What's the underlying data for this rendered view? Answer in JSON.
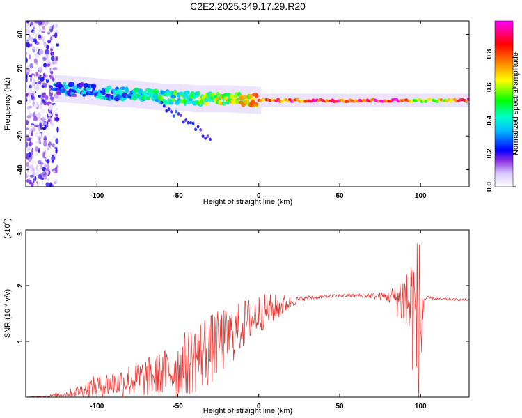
{
  "page": {
    "title": "C2E2.2025.349.17.29.R20"
  },
  "chart_data": [
    {
      "id": "spectrogram",
      "type": "heatmap",
      "title": "C2E2.2025.349.17.29.R20",
      "xlabel": "Height of straight line (km)",
      "ylabel": "Frequency (Hz)",
      "xlim": [
        -144,
        130
      ],
      "ylim": [
        -50,
        48
      ],
      "xticks": [
        -100,
        -50,
        0,
        50,
        100
      ],
      "yticks": [
        -40,
        -20,
        0,
        20,
        40
      ],
      "colorbar": {
        "label": "Normalized spectral amplitude",
        "range": [
          0,
          1
        ],
        "ticks": [
          "0.0",
          "0.2",
          "0.4",
          "0.6",
          "0.8"
        ],
        "colormap": "rainbow",
        "stops": [
          "#ffffff",
          "#d8c8ff",
          "#8a2be2",
          "#0000ff",
          "#00bfff",
          "#00ffcc",
          "#00ff00",
          "#ffff00",
          "#ff8c00",
          "#ff0000",
          "#ff00ff"
        ]
      },
      "ridge": {
        "x": [
          -125,
          -110,
          -100,
          -90,
          -80,
          -70,
          -60,
          -50,
          -40,
          -30,
          -20,
          -10,
          0,
          20,
          50,
          90,
          100,
          130
        ],
        "freq": [
          8,
          7,
          6,
          5,
          5,
          4,
          3,
          3,
          2,
          2,
          2,
          1.5,
          1,
          1,
          1,
          1,
          1,
          1
        ],
        "amp": [
          0.35,
          0.35,
          0.38,
          0.4,
          0.42,
          0.45,
          0.5,
          0.52,
          0.55,
          0.6,
          0.65,
          0.7,
          0.8,
          0.85,
          0.9,
          0.92,
          0.6,
          0.92
        ]
      },
      "branch": {
        "x": [
          -60,
          -50,
          -40,
          -30
        ],
        "freq": [
          -2,
          -8,
          -14,
          -22
        ],
        "amp": [
          0.25,
          0.25,
          0.22,
          0.2
        ]
      },
      "noise_region": {
        "x": [
          -144,
          -124
        ],
        "amp_max": 0.3
      },
      "grid": false
    },
    {
      "id": "snr",
      "type": "line",
      "xlabel": "Height of straight line (km)",
      "ylabel": "SNR (10 * v/v)",
      "y_multiplier": "(x10^4)",
      "y_multiplier_base": "(x10",
      "y_multiplier_exp": "4",
      "y_multiplier_close": ")",
      "xlim": [
        -144,
        130
      ],
      "ylim": [
        0,
        3
      ],
      "xticks": [
        -100,
        -50,
        0,
        50,
        100
      ],
      "yticks": [
        1,
        2,
        3
      ],
      "color": "#e53935",
      "series": [
        {
          "x": [
            -144,
            -130,
            -120,
            -110,
            -100,
            -90,
            -80,
            -70,
            -60,
            -50,
            -45,
            -40,
            -35,
            -30,
            -25,
            -20,
            -15,
            -10,
            -5,
            0,
            5,
            10,
            15,
            20,
            25,
            30,
            40,
            50,
            60,
            70,
            80,
            85,
            90,
            95,
            98,
            100,
            102,
            105,
            110,
            120,
            130
          ],
          "y": [
            0.0,
            0.02,
            0.05,
            0.12,
            0.2,
            0.25,
            0.3,
            0.35,
            0.42,
            0.5,
            0.6,
            0.7,
            0.8,
            0.85,
            0.95,
            1.05,
            1.15,
            1.3,
            1.4,
            1.5,
            1.55,
            1.6,
            1.65,
            1.7,
            1.75,
            1.78,
            1.8,
            1.82,
            1.82,
            1.82,
            1.8,
            1.78,
            1.75,
            1.6,
            1.3,
            1.2,
            1.75,
            1.78,
            1.76,
            1.75,
            1.74
          ],
          "amp": [
            0.0,
            0.02,
            0.05,
            0.12,
            0.2,
            0.25,
            0.3,
            0.35,
            0.4,
            0.55,
            0.6,
            0.65,
            0.7,
            0.65,
            0.6,
            0.55,
            0.5,
            0.45,
            0.4,
            0.35,
            0.3,
            0.25,
            0.2,
            0.1,
            0.05,
            0.04,
            0.03,
            0.03,
            0.03,
            0.05,
            0.1,
            0.3,
            0.6,
            1.2,
            1.6,
            1.8,
            0.05,
            0.03,
            0.02,
            0.02,
            0.02
          ]
        }
      ],
      "grid": false
    }
  ]
}
